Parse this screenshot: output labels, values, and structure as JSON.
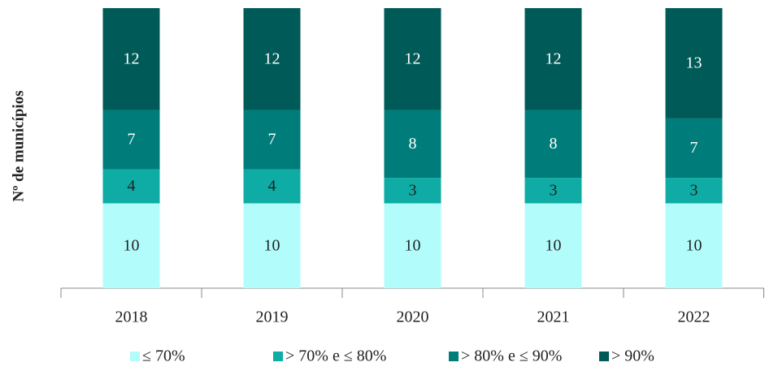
{
  "chart_data": {
    "type": "stacked_bar",
    "y_label": "Nº de municípios",
    "categories": [
      "2018",
      "2019",
      "2020",
      "2021",
      "2022"
    ],
    "series": [
      {
        "name": "≤ 70%",
        "color": "#b3fcfc",
        "text_color": "#222222",
        "values": [
          10,
          10,
          10,
          10,
          10
        ]
      },
      {
        "name": "> 70% e ≤ 80%",
        "color": "#0eaca4",
        "text_color": "#222222",
        "values": [
          4,
          4,
          3,
          3,
          3
        ]
      },
      {
        "name": "> 80% e ≤ 90%",
        "color": "#007d7a",
        "text_color": "#ffffff",
        "values": [
          7,
          7,
          8,
          8,
          7
        ]
      },
      {
        "name": "> 90%",
        "color": "#005a57",
        "text_color": "#ffffff",
        "values": [
          12,
          12,
          12,
          12,
          13
        ]
      }
    ],
    "ylim": [
      0,
      33
    ],
    "legend": "bottom"
  }
}
